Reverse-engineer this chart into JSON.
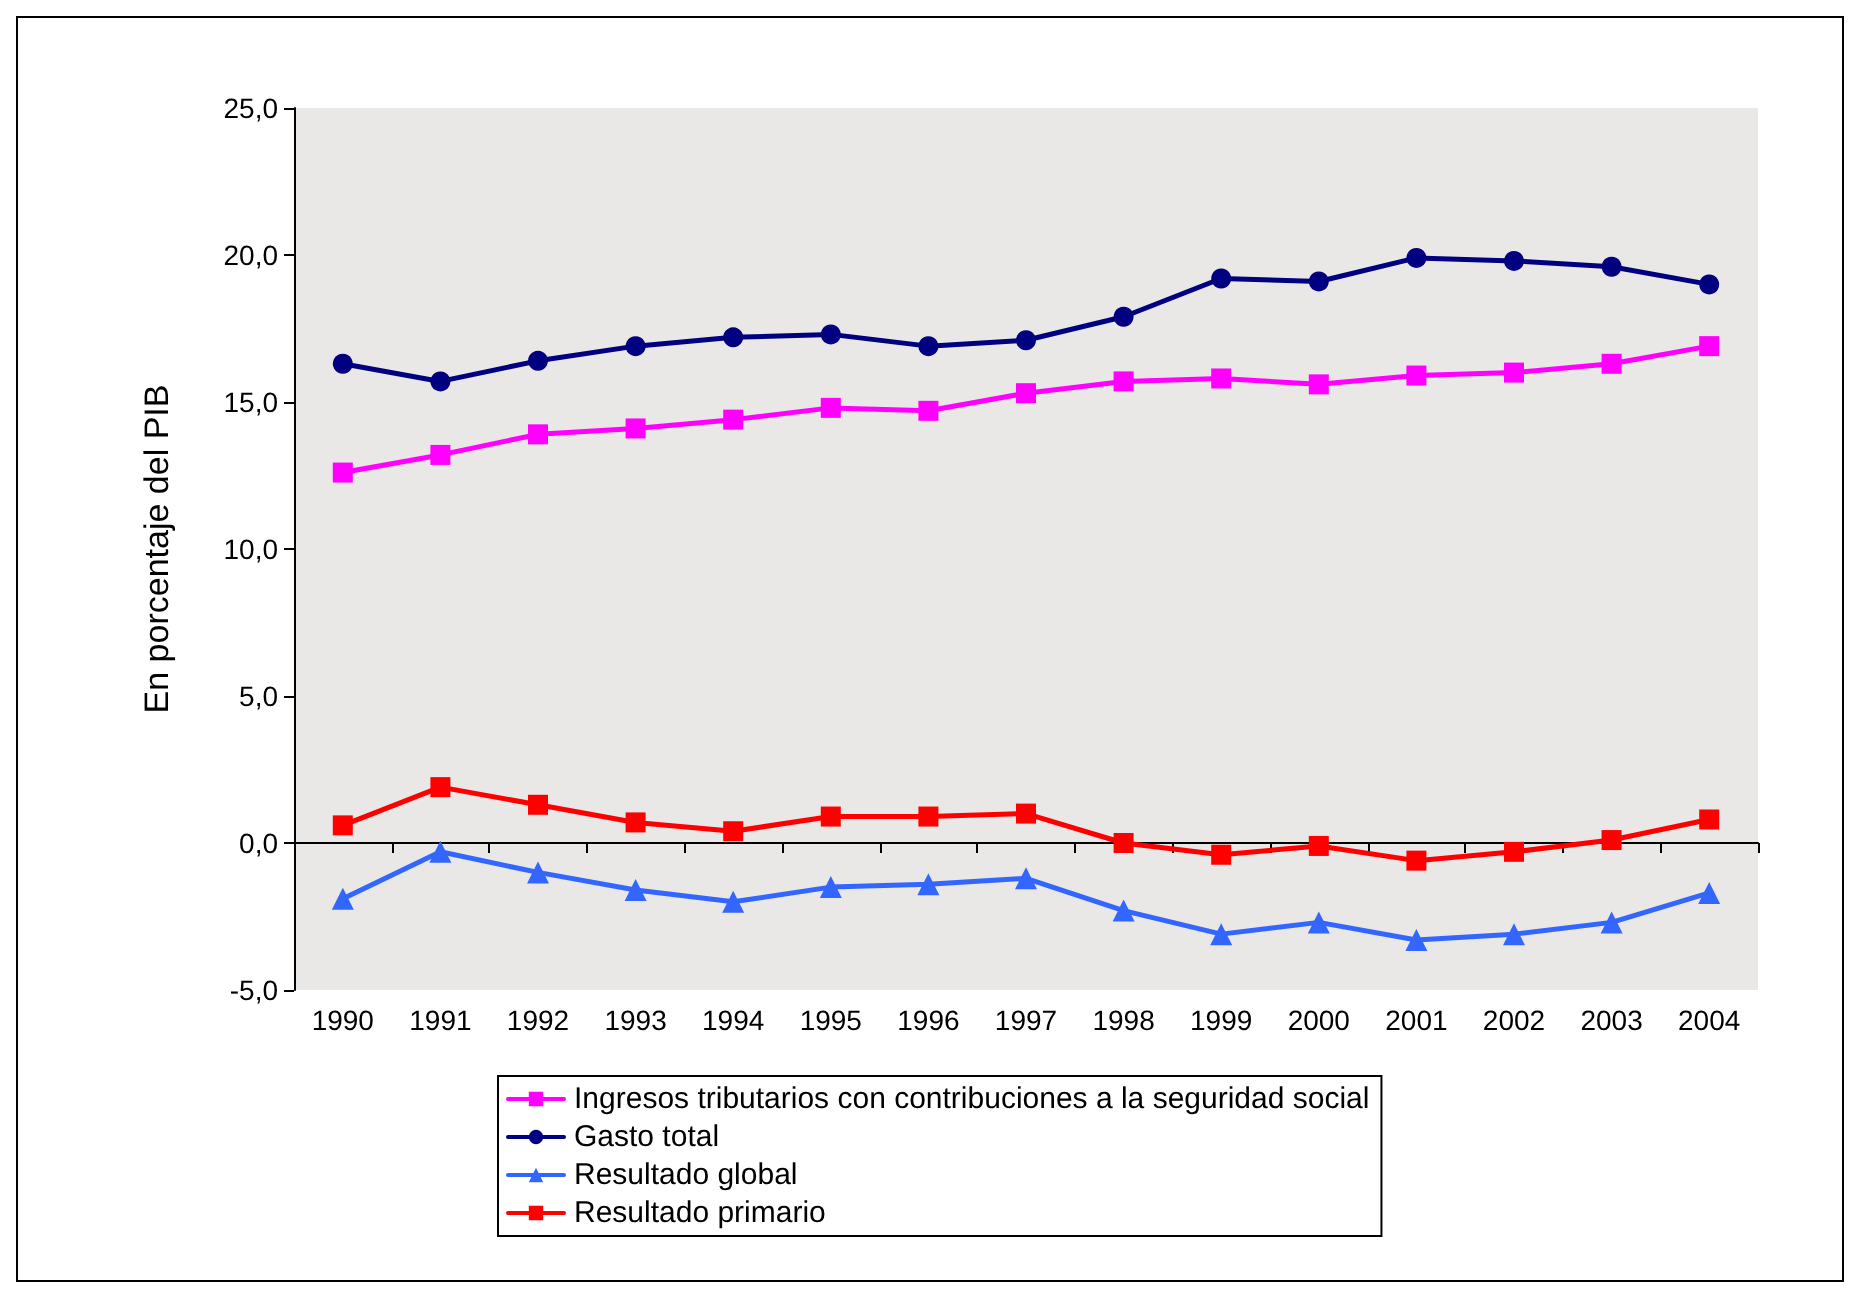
{
  "chart_data": {
    "type": "line",
    "ylabel": "En porcentaje del PIB",
    "categories": [
      "1990",
      "1991",
      "1992",
      "1993",
      "1994",
      "1995",
      "1996",
      "1997",
      "1998",
      "1999",
      "2000",
      "2001",
      "2002",
      "2003",
      "2004"
    ],
    "series": [
      {
        "name": "Ingresos tributarios con contribuciones a la seguridad social",
        "color": "#ff00ff",
        "marker": "square",
        "values": [
          12.6,
          13.2,
          13.9,
          14.1,
          14.4,
          14.8,
          14.7,
          15.3,
          15.7,
          15.8,
          15.6,
          15.9,
          16.0,
          16.3,
          16.9
        ]
      },
      {
        "name": "Gasto total",
        "color": "#000080",
        "marker": "circle",
        "values": [
          16.3,
          15.7,
          16.4,
          16.9,
          17.2,
          17.3,
          16.9,
          17.1,
          17.9,
          19.2,
          19.1,
          19.9,
          19.8,
          19.6,
          19.0
        ]
      },
      {
        "name": "Resultado global",
        "color": "#3366ff",
        "marker": "triangle",
        "values": [
          -1.9,
          -0.3,
          -1.0,
          -1.6,
          -2.0,
          -1.5,
          -1.4,
          -1.2,
          -2.3,
          -3.1,
          -2.7,
          -3.3,
          -3.1,
          -2.7,
          -1.7
        ]
      },
      {
        "name": "Resultado primario",
        "color": "#ff0000",
        "marker": "square",
        "values": [
          0.6,
          1.9,
          1.3,
          0.7,
          0.4,
          0.9,
          0.9,
          1.0,
          0.0,
          -0.4,
          -0.1,
          -0.6,
          -0.3,
          0.1,
          0.8
        ]
      }
    ],
    "ylim": [
      -5,
      25
    ],
    "yticks": [
      {
        "value": -5,
        "label": "-5,0"
      },
      {
        "value": 0,
        "label": "0,0"
      },
      {
        "value": 5,
        "label": "5,0"
      },
      {
        "value": 10,
        "label": "10,0"
      },
      {
        "value": 15,
        "label": "15,0"
      },
      {
        "value": 20,
        "label": "20,0"
      },
      {
        "value": 25,
        "label": "25,0"
      }
    ],
    "legend": "bottom",
    "line_style": "solid"
  }
}
